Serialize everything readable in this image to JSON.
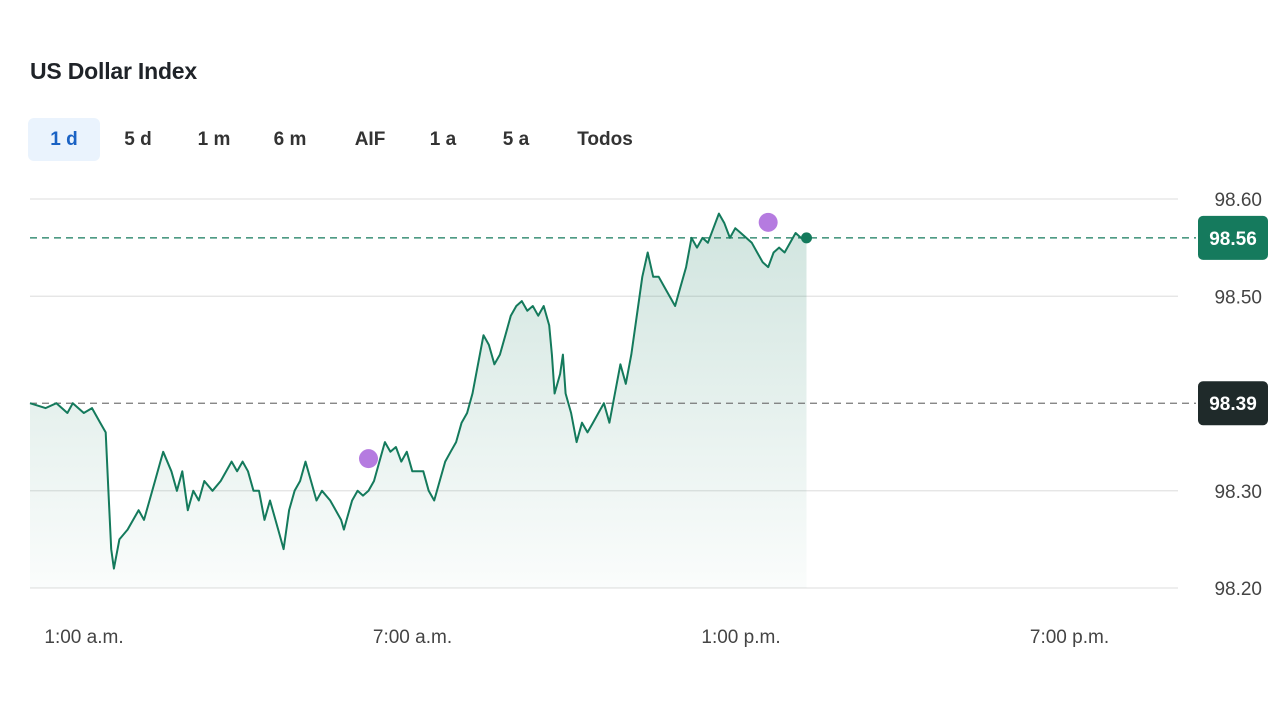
{
  "title": "US Dollar Index",
  "tabs": [
    {
      "label": "1 d",
      "active": true
    },
    {
      "label": "5 d",
      "active": false
    },
    {
      "label": "1 m",
      "active": false
    },
    {
      "label": "6 m",
      "active": false
    },
    {
      "label": "AIF",
      "active": false
    },
    {
      "label": "1 a",
      "active": false
    },
    {
      "label": "5 a",
      "active": false
    },
    {
      "label": "Todos",
      "active": false
    }
  ],
  "colors": {
    "line": "#147a5c",
    "current_badge": "#157a5d",
    "previous_badge": "#1f2a2a",
    "marker": "#b57be0",
    "active_tab_text": "#1a62c4"
  },
  "chart_data": {
    "type": "area",
    "x_unit": "hours",
    "x_range": [
      1,
      23
    ],
    "ylim": [
      98.2,
      98.6
    ],
    "yticks": [
      "98.60",
      "98.50",
      "98.30",
      "98.20"
    ],
    "xticks": [
      {
        "value": 1,
        "label": "1:00 a.m."
      },
      {
        "value": 7,
        "label": "7:00 a.m."
      },
      {
        "value": 13,
        "label": "1:00 p.m."
      },
      {
        "value": 19,
        "label": "7:00 p.m."
      }
    ],
    "current": {
      "value": 98.56,
      "label": "98.56"
    },
    "previous_close": {
      "value": 98.39,
      "label": "98.39"
    },
    "markers": [
      {
        "x": 7.0,
        "y": 98.333
      },
      {
        "x": 14.3,
        "y": 98.576
      }
    ],
    "series": [
      {
        "points": [
          [
            0.95,
            98.39
          ],
          [
            1.1,
            98.385
          ],
          [
            1.3,
            98.39
          ],
          [
            1.5,
            98.38
          ],
          [
            1.6,
            98.39
          ],
          [
            1.8,
            98.38
          ],
          [
            1.95,
            98.385
          ],
          [
            2.1,
            98.37
          ],
          [
            2.2,
            98.36
          ],
          [
            2.25,
            98.3
          ],
          [
            2.3,
            98.24
          ],
          [
            2.35,
            98.22
          ],
          [
            2.45,
            98.25
          ],
          [
            2.6,
            98.26
          ],
          [
            2.8,
            98.28
          ],
          [
            2.9,
            98.27
          ],
          [
            3.0,
            98.29
          ],
          [
            3.1,
            98.31
          ],
          [
            3.2,
            98.33
          ],
          [
            3.25,
            98.34
          ],
          [
            3.4,
            98.32
          ],
          [
            3.5,
            98.3
          ],
          [
            3.6,
            98.32
          ],
          [
            3.7,
            98.28
          ],
          [
            3.8,
            98.3
          ],
          [
            3.9,
            98.29
          ],
          [
            4.0,
            98.31
          ],
          [
            4.15,
            98.3
          ],
          [
            4.3,
            98.31
          ],
          [
            4.4,
            98.32
          ],
          [
            4.5,
            98.33
          ],
          [
            4.6,
            98.32
          ],
          [
            4.7,
            98.33
          ],
          [
            4.8,
            98.32
          ],
          [
            4.9,
            98.3
          ],
          [
            5.0,
            98.3
          ],
          [
            5.1,
            98.27
          ],
          [
            5.2,
            98.29
          ],
          [
            5.35,
            98.26
          ],
          [
            5.45,
            98.24
          ],
          [
            5.55,
            98.28
          ],
          [
            5.65,
            98.3
          ],
          [
            5.75,
            98.31
          ],
          [
            5.85,
            98.33
          ],
          [
            5.95,
            98.31
          ],
          [
            6.05,
            98.29
          ],
          [
            6.15,
            98.3
          ],
          [
            6.3,
            98.29
          ],
          [
            6.4,
            98.28
          ],
          [
            6.5,
            98.27
          ],
          [
            6.55,
            98.26
          ],
          [
            6.6,
            98.27
          ],
          [
            6.7,
            98.29
          ],
          [
            6.8,
            98.3
          ],
          [
            6.9,
            98.295
          ],
          [
            7.0,
            98.3
          ],
          [
            7.1,
            98.31
          ],
          [
            7.2,
            98.33
          ],
          [
            7.3,
            98.35
          ],
          [
            7.4,
            98.34
          ],
          [
            7.5,
            98.345
          ],
          [
            7.6,
            98.33
          ],
          [
            7.7,
            98.34
          ],
          [
            7.8,
            98.32
          ],
          [
            7.9,
            98.32
          ],
          [
            8.0,
            98.32
          ],
          [
            8.1,
            98.3
          ],
          [
            8.2,
            98.29
          ],
          [
            8.3,
            98.31
          ],
          [
            8.4,
            98.33
          ],
          [
            8.5,
            98.34
          ],
          [
            8.6,
            98.35
          ],
          [
            8.7,
            98.37
          ],
          [
            8.8,
            98.38
          ],
          [
            8.9,
            98.4
          ],
          [
            9.0,
            98.43
          ],
          [
            9.1,
            98.46
          ],
          [
            9.2,
            98.45
          ],
          [
            9.3,
            98.43
          ],
          [
            9.4,
            98.44
          ],
          [
            9.5,
            98.46
          ],
          [
            9.6,
            98.48
          ],
          [
            9.7,
            98.49
          ],
          [
            9.8,
            98.495
          ],
          [
            9.9,
            98.485
          ],
          [
            10.0,
            98.49
          ],
          [
            10.1,
            98.48
          ],
          [
            10.2,
            98.49
          ],
          [
            10.3,
            98.47
          ],
          [
            10.35,
            98.44
          ],
          [
            10.4,
            98.4
          ],
          [
            10.5,
            98.42
          ],
          [
            10.55,
            98.44
          ],
          [
            10.6,
            98.4
          ],
          [
            10.7,
            98.38
          ],
          [
            10.8,
            98.35
          ],
          [
            10.9,
            98.37
          ],
          [
            11.0,
            98.36
          ],
          [
            11.1,
            98.37
          ],
          [
            11.2,
            98.38
          ],
          [
            11.3,
            98.39
          ],
          [
            11.4,
            98.37
          ],
          [
            11.5,
            98.4
          ],
          [
            11.6,
            98.43
          ],
          [
            11.7,
            98.41
          ],
          [
            11.8,
            98.44
          ],
          [
            11.9,
            98.48
          ],
          [
            12.0,
            98.52
          ],
          [
            12.1,
            98.545
          ],
          [
            12.2,
            98.52
          ],
          [
            12.3,
            98.52
          ],
          [
            12.4,
            98.51
          ],
          [
            12.5,
            98.5
          ],
          [
            12.6,
            98.49
          ],
          [
            12.7,
            98.51
          ],
          [
            12.8,
            98.53
          ],
          [
            12.9,
            98.56
          ],
          [
            13.0,
            98.55
          ],
          [
            13.1,
            98.56
          ],
          [
            13.2,
            98.555
          ],
          [
            13.3,
            98.57
          ],
          [
            13.4,
            98.585
          ],
          [
            13.5,
            98.575
          ],
          [
            13.6,
            98.56
          ],
          [
            13.7,
            98.57
          ],
          [
            13.8,
            98.565
          ],
          [
            13.9,
            98.56
          ],
          [
            14.0,
            98.555
          ],
          [
            14.1,
            98.545
          ],
          [
            14.2,
            98.535
          ],
          [
            14.3,
            98.53
          ],
          [
            14.4,
            98.545
          ],
          [
            14.5,
            98.55
          ],
          [
            14.6,
            98.545
          ],
          [
            14.7,
            98.555
          ],
          [
            14.8,
            98.565
          ],
          [
            14.9,
            98.56
          ],
          [
            15.0,
            98.56
          ]
        ]
      }
    ]
  }
}
